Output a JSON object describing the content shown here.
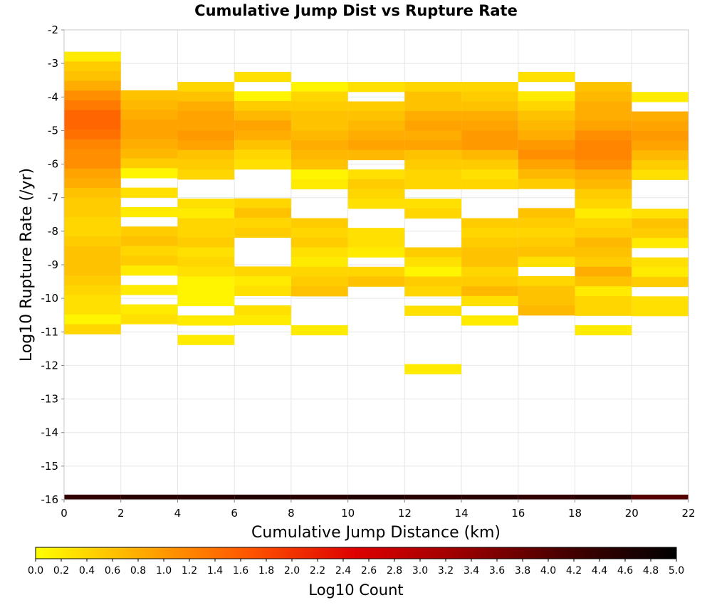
{
  "chart_data": {
    "type": "heatmap",
    "title": "Cumulative Jump Dist vs Rupture Rate",
    "xlabel": "Cumulative Jump Distance (km)",
    "ylabel": "Log10 Rupture Rate (/yr)",
    "xlim": [
      0,
      22
    ],
    "ylim": [
      -16,
      -2
    ],
    "x_ticks": [
      "0",
      "2",
      "4",
      "6",
      "8",
      "10",
      "12",
      "14",
      "16",
      "18",
      "20",
      "22"
    ],
    "y_ticks": [
      "-2",
      "-3",
      "-4",
      "-5",
      "-6",
      "-7",
      "-8",
      "-9",
      "-10",
      "-11",
      "-12",
      "-13",
      "-14",
      "-15",
      "-16"
    ],
    "x_bin_width": 2,
    "y_bin_height": 0.29,
    "grid": true,
    "colorbar": {
      "label": "Log10 Count",
      "range": [
        0.0,
        5.0
      ],
      "ticks": [
        "0.0",
        "0.2",
        "0.4",
        "0.6",
        "0.8",
        "1.0",
        "1.2",
        "1.4",
        "1.6",
        "1.8",
        "2.0",
        "2.2",
        "2.4",
        "2.6",
        "2.8",
        "3.0",
        "3.2",
        "3.4",
        "3.6",
        "3.8",
        "4.0",
        "4.2",
        "4.4",
        "4.6",
        "4.8",
        "5.0"
      ],
      "colors": [
        "#ffff00",
        "#ffaa00",
        "#ff5500",
        "#dd0000",
        "#990000",
        "#440000",
        "#000000"
      ]
    },
    "columns": [
      {
        "x0": 0,
        "y_top": -2.65,
        "values": [
          0.2,
          0.5,
          0.6,
          0.8,
          1.1,
          1.3,
          1.5,
          1.5,
          1.4,
          1.2,
          1.1,
          1.1,
          0.9,
          0.8,
          0.6,
          0.5,
          0.5,
          0.4,
          0.4,
          0.5,
          0.6,
          0.6,
          0.6,
          0.5,
          0.4,
          0.3,
          0.3,
          0.1,
          0.4
        ]
      },
      {
        "x0": 2,
        "y_top": -3.8,
        "values": [
          0.6,
          0.7,
          0.8,
          0.9,
          0.9,
          0.8,
          0.7,
          0.5,
          0.1,
          null,
          0.3,
          null,
          0.2,
          null,
          0.5,
          0.6,
          0.4,
          0.5,
          0.2,
          null,
          0.2,
          null,
          0.2,
          0.3
        ]
      },
      {
        "x0": 4,
        "y_top": -3.55,
        "values": [
          0.4,
          0.6,
          0.8,
          0.9,
          0.9,
          1.0,
          0.9,
          0.6,
          0.5,
          0.4,
          null,
          null,
          0.3,
          0.2,
          0.4,
          0.4,
          0.5,
          0.3,
          0.4,
          0.3,
          0.1,
          0.1,
          0.1,
          null,
          0.2,
          null,
          0.2
        ]
      },
      {
        "x0": 6,
        "y_top": -3.25,
        "values": [
          0.3,
          null,
          0.1,
          0.5,
          0.7,
          0.9,
          0.8,
          0.6,
          0.4,
          0.3,
          null,
          null,
          null,
          0.4,
          0.6,
          0.4,
          0.5,
          null,
          null,
          null,
          0.4,
          0.2,
          0.3,
          null,
          0.3,
          0.2
        ]
      },
      {
        "x0": 8,
        "y_top": -3.55,
        "values": [
          0.1,
          0.4,
          0.5,
          0.6,
          0.6,
          0.7,
          0.8,
          0.7,
          0.6,
          0.1,
          0.2,
          null,
          null,
          null,
          0.5,
          0.4,
          0.5,
          0.3,
          0.2,
          0.4,
          0.5,
          0.6,
          null,
          null,
          null,
          0.2
        ]
      },
      {
        "x0": 10,
        "y_top": -3.55,
        "values": [
          0.3,
          null,
          0.5,
          0.6,
          0.7,
          0.8,
          0.9,
          0.7,
          null,
          0.3,
          0.5,
          0.4,
          0.3,
          null,
          null,
          0.3,
          0.3,
          0.2,
          null,
          0.4,
          0.6
        ]
      },
      {
        "x0": 12,
        "y_top": -3.55,
        "values": [
          0.4,
          0.6,
          0.6,
          0.8,
          0.9,
          0.8,
          0.9,
          0.6,
          0.5,
          0.4,
          0.4,
          null,
          0.3,
          0.4,
          null,
          null,
          null,
          0.5,
          0.3,
          0.1,
          0.5,
          0.4,
          null,
          0.3,
          null,
          null,
          null,
          null,
          null,
          0.2
        ]
      },
      {
        "x0": 14,
        "y_top": -3.55,
        "values": [
          0.4,
          0.5,
          0.6,
          0.8,
          0.9,
          1.0,
          1.0,
          0.7,
          0.5,
          0.3,
          0.4,
          null,
          null,
          null,
          0.5,
          0.4,
          0.5,
          0.6,
          0.6,
          0.4,
          0.5,
          0.7,
          0.3,
          null,
          0.2
        ]
      },
      {
        "x0": 16,
        "y_top": -3.25,
        "values": [
          0.3,
          null,
          0.2,
          0.4,
          0.6,
          0.7,
          0.8,
          1.0,
          1.1,
          0.9,
          0.7,
          0.5,
          null,
          null,
          0.6,
          0.5,
          0.4,
          0.5,
          0.6,
          0.3,
          null,
          0.4,
          0.6,
          0.6,
          0.7
        ]
      },
      {
        "x0": 18,
        "y_top": -3.55,
        "values": [
          0.6,
          0.7,
          0.8,
          0.8,
          0.9,
          1.1,
          1.2,
          1.2,
          1.1,
          0.8,
          0.7,
          0.5,
          0.4,
          0.2,
          0.4,
          0.5,
          0.7,
          0.6,
          0.5,
          0.8,
          0.6,
          0.2,
          0.4,
          0.4,
          null,
          0.2
        ]
      },
      {
        "x0": 20,
        "y_top": -3.85,
        "values": [
          0.2,
          null,
          0.8,
          0.9,
          1.0,
          0.9,
          0.7,
          0.5,
          0.3,
          null,
          null,
          null,
          0.3,
          0.6,
          0.5,
          0.2,
          null,
          0.3,
          0.2,
          0.5,
          null,
          0.3,
          0.3
        ]
      }
    ],
    "bottom_band": {
      "y0": -16,
      "y1": -15.85,
      "values": [
        4.4,
        4.5,
        4.5,
        4.6,
        4.5,
        4.6,
        4.5,
        4.5,
        4.4,
        4.5,
        4.0
      ]
    }
  }
}
